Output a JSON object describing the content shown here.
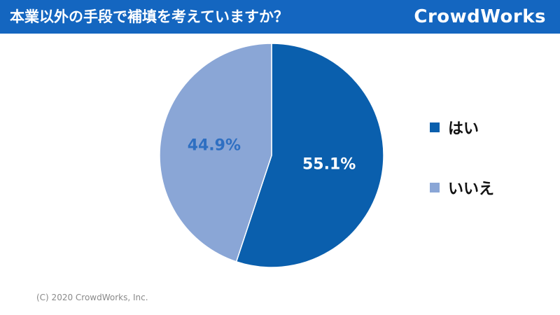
{
  "header": {
    "title": "本業以外の手段で補填を考えていますか？",
    "logo": "CrowdWorks",
    "background_color": "#1466c0"
  },
  "chart_data": {
    "type": "pie",
    "title": "本業以外の手段で補填を考えていますか？",
    "series": [
      {
        "name": "はい",
        "value": 55.1,
        "label": "55.1%",
        "color": "#0a5fad",
        "label_color": "#ffffff"
      },
      {
        "name": "いいえ",
        "value": 44.9,
        "label": "44.9%",
        "color": "#8aa6d6",
        "label_color": "#2e6fc2"
      }
    ],
    "legend_position": "right",
    "start_angle_deg": 0,
    "direction": "clockwise"
  },
  "footer": {
    "copyright": "(C) 2020 CrowdWorks, Inc."
  }
}
